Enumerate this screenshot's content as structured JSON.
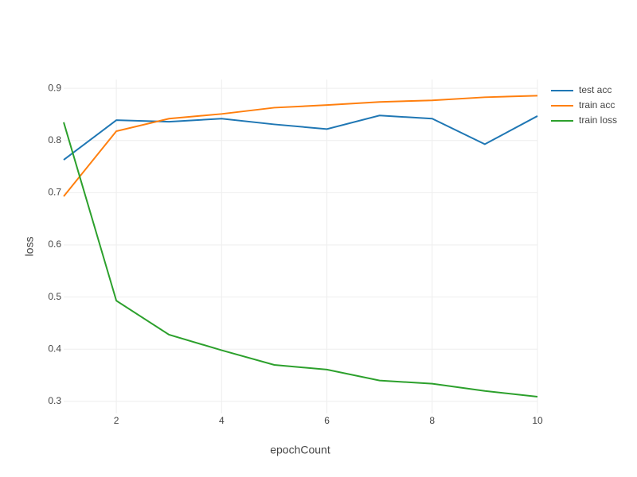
{
  "chart_data": {
    "type": "line",
    "x_label": "epochCount",
    "y_label": "loss",
    "x": [
      1,
      2,
      3,
      4,
      5,
      6,
      7,
      8,
      9,
      10
    ],
    "series": [
      {
        "name": "test acc",
        "color": "#1f77b4",
        "values": [
          0.763,
          0.839,
          0.836,
          0.842,
          0.831,
          0.822,
          0.848,
          0.842,
          0.793,
          0.847
        ]
      },
      {
        "name": "train acc",
        "color": "#ff7f0e",
        "values": [
          0.693,
          0.818,
          0.842,
          0.851,
          0.863,
          0.868,
          0.874,
          0.877,
          0.883,
          0.886
        ]
      },
      {
        "name": "train loss",
        "color": "#2ca02c",
        "values": [
          0.835,
          0.493,
          0.428,
          0.398,
          0.37,
          0.361,
          0.34,
          0.334,
          0.32,
          0.309
        ]
      }
    ],
    "xlim": [
      1,
      10
    ],
    "xticks": [
      2,
      4,
      6,
      8,
      10
    ],
    "ylim": [
      0.277,
      0.917
    ],
    "yticks": [
      0.3,
      0.4,
      0.5,
      0.6,
      0.7,
      0.8,
      0.9
    ],
    "grid": true
  }
}
